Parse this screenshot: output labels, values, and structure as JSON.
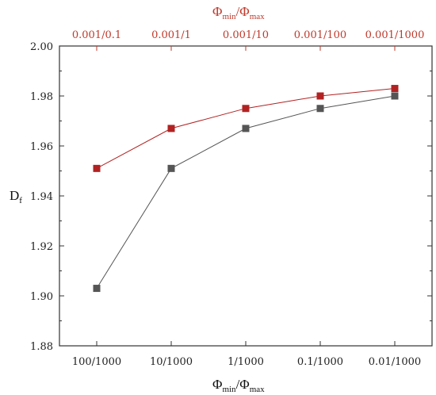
{
  "chart_data": {
    "type": "line",
    "categories": [
      "100/1000",
      "10/1000",
      "1/1000",
      "0.1/1000",
      "0.01/1000"
    ],
    "top_categories": [
      "0.001/0.1",
      "0.001/1",
      "0.001/10",
      "0.001/100",
      "0.001/1000"
    ],
    "series": [
      {
        "name": "",
        "axis": "bottom",
        "color": "#555555",
        "values": [
          1.903,
          1.951,
          1.967,
          1.975,
          1.98
        ]
      },
      {
        "name": "",
        "axis": "top",
        "color": "#b22222",
        "values": [
          1.951,
          1.967,
          1.975,
          1.98,
          1.983
        ]
      }
    ],
    "ylabel": {
      "main": "D",
      "sub": "f"
    },
    "xlabel": {
      "a": "Φ",
      "a_sub": "min",
      "sep": "/",
      "b": "Φ",
      "b_sub": "max"
    },
    "xlabel_top": {
      "a": "Φ",
      "a_sub": "min",
      "sep": "/",
      "b": "Φ",
      "b_sub": "max"
    },
    "ylim": [
      1.88,
      2.0
    ],
    "yticks": [
      "1.88",
      "1.90",
      "1.92",
      "1.94",
      "1.96",
      "1.98",
      "2.00"
    ],
    "ytick_values": [
      1.88,
      1.9,
      1.92,
      1.94,
      1.96,
      1.98,
      2.0
    ],
    "colors": {
      "bottom_axis": "#222222",
      "top_axis": "#c0392b"
    },
    "grid": false
  }
}
